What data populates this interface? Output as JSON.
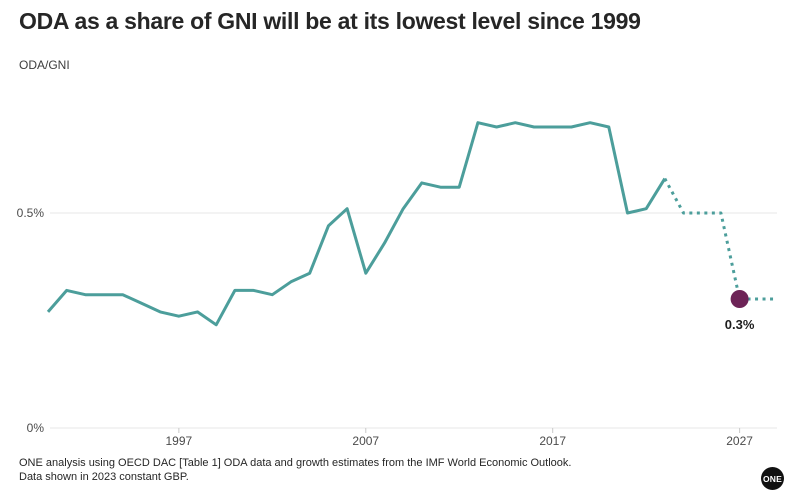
{
  "page": {
    "title": "ODA as a share of GNI will be at its lowest level since 1999",
    "y_unit_label": "ODA/GNI",
    "footnote_line1": "ONE analysis using OECD DAC [Table 1] ODA data and growth estimates from the IMF World Economic Outlook.",
    "footnote_line2": "Data shown in 2023 constant GBP.",
    "logo_text": "ONE"
  },
  "colors": {
    "line_teal": "#4c9e9b",
    "dot_purple": "#6d2457",
    "grid": "#e7e7e7",
    "tick": "#c9c9c9",
    "axis_text": "#4b4b4b",
    "annotation_text": "#1d1d1d",
    "background": "#ffffff"
  },
  "chart_data": {
    "type": "line",
    "title": "ODA as a share of GNI will be at its lowest level since 1999",
    "xlabel": "",
    "ylabel": "ODA/GNI",
    "xlim": [
      1990,
      2029
    ],
    "ylim": [
      0,
      0.75
    ],
    "grid": "horizontal-only",
    "legend_position": "none",
    "x_ticks": [
      1997,
      2007,
      2017,
      2027
    ],
    "y_ticks": [
      {
        "value": 0,
        "label": "0%"
      },
      {
        "value": 0.5,
        "label": "0.5%"
      }
    ],
    "series": [
      {
        "name": "ODA/GNI (actual)",
        "style": "solid",
        "x": [
          1990,
          1991,
          1992,
          1993,
          1994,
          1995,
          1996,
          1997,
          1998,
          1999,
          2000,
          2001,
          2002,
          2003,
          2004,
          2005,
          2006,
          2007,
          2008,
          2009,
          2010,
          2011,
          2012,
          2013,
          2014,
          2015,
          2016,
          2017,
          2018,
          2019,
          2020,
          2021,
          2022,
          2023
        ],
        "values": [
          0.27,
          0.32,
          0.31,
          0.31,
          0.31,
          0.29,
          0.27,
          0.26,
          0.27,
          0.24,
          0.32,
          0.32,
          0.31,
          0.34,
          0.36,
          0.47,
          0.51,
          0.36,
          0.43,
          0.51,
          0.57,
          0.56,
          0.56,
          0.71,
          0.7,
          0.71,
          0.7,
          0.7,
          0.7,
          0.71,
          0.7,
          0.5,
          0.51,
          0.58
        ]
      },
      {
        "name": "ODA/GNI (projected)",
        "style": "dotted",
        "x": [
          2023,
          2024,
          2025,
          2026,
          2027,
          2028,
          2029
        ],
        "values": [
          0.58,
          0.5,
          0.5,
          0.5,
          0.3,
          0.3,
          0.3
        ]
      }
    ],
    "annotation": {
      "year": 2027,
      "value": 0.3,
      "label": "0.3%"
    }
  }
}
